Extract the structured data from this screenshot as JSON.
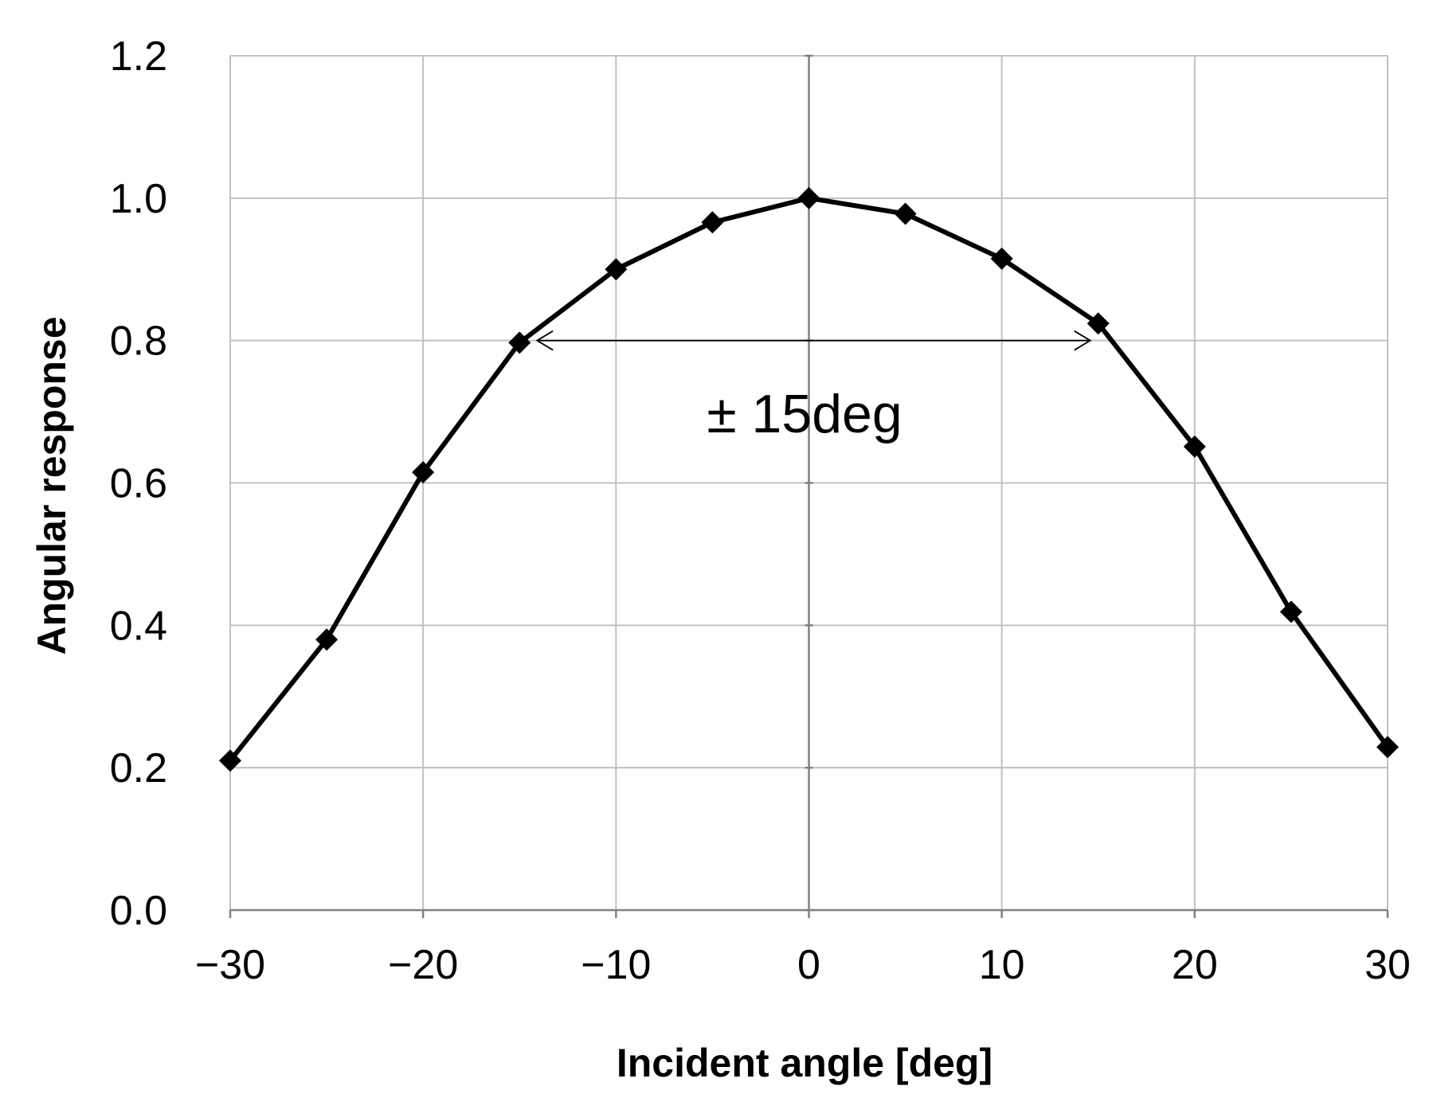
{
  "chart_data": {
    "type": "line",
    "title": "",
    "xlabel": "Incident angle [deg]",
    "ylabel": "Angular response",
    "xlim": [
      -30,
      30
    ],
    "ylim": [
      0.0,
      1.2
    ],
    "x_ticks": [
      -30,
      -20,
      -10,
      0,
      10,
      20,
      30
    ],
    "x_tick_labels": [
      "−30",
      "−20",
      "−10",
      "0",
      "10",
      "20",
      "30"
    ],
    "y_ticks": [
      0.0,
      0.2,
      0.4,
      0.6,
      0.8,
      1.0,
      1.2
    ],
    "y_tick_labels": [
      "0.0",
      "0.2",
      "0.4",
      "0.6",
      "0.8",
      "1.0",
      "1.2"
    ],
    "grid": true,
    "legend": "none",
    "series": [
      {
        "x": [
          -30,
          -25,
          -20,
          -15,
          -10,
          -5,
          0,
          5,
          10,
          15,
          20,
          25,
          30
        ],
        "y": [
          0.21,
          0.38,
          0.615,
          0.797,
          0.9,
          0.966,
          1.0,
          0.978,
          0.915,
          0.824,
          0.651,
          0.419,
          0.229
        ],
        "color": "#000000",
        "marker": "diamond"
      }
    ],
    "annotations": [
      {
        "text": "± 15deg",
        "arrow": "double",
        "x_from": -15,
        "x_to": 15,
        "y": 0.8
      }
    ]
  }
}
